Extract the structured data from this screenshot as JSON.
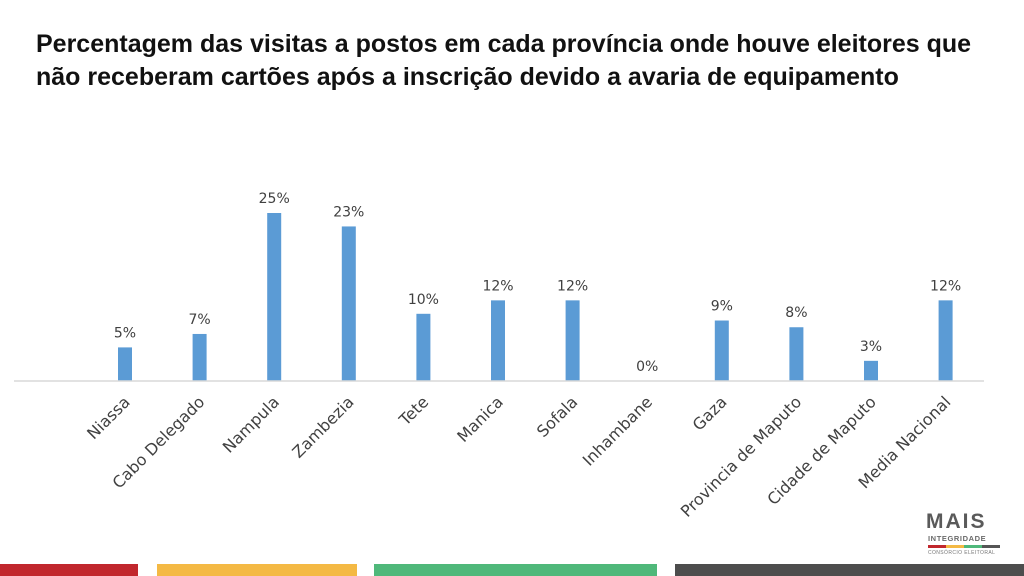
{
  "title": "Percentagem das visitas a postos em cada província onde houve eleitores que não receberam cartões após a inscrição devido a avaria de equipamento",
  "chart_data": {
    "type": "bar",
    "categories": [
      "Niassa",
      "Cabo Delegado",
      "Nampula",
      "Zambezia",
      "Tete",
      "Manica",
      "Sofala",
      "Inhambane",
      "Gaza",
      "Provincia de Maputo",
      "Cidade de Maputo",
      "Media Nacional"
    ],
    "values": [
      5,
      7,
      25,
      23,
      10,
      12,
      12,
      0,
      9,
      8,
      3,
      12
    ],
    "value_labels": [
      "5%",
      "7%",
      "25%",
      "23%",
      "10%",
      "12%",
      "12%",
      "0%",
      "9%",
      "8%",
      "3%",
      "12%"
    ],
    "unit": "%",
    "ylim": [
      0,
      25
    ],
    "bar_color": "#5b9bd5",
    "grid": false,
    "legend": "none"
  },
  "logo": {
    "main": "MAIS",
    "sub": "INTEGRIDADE",
    "tag": "CONSÓRCIO ELEITORAL"
  },
  "footer_colors": [
    "#c1272d",
    "#f4b944",
    "#4fb87a",
    "#4d4d4d"
  ]
}
